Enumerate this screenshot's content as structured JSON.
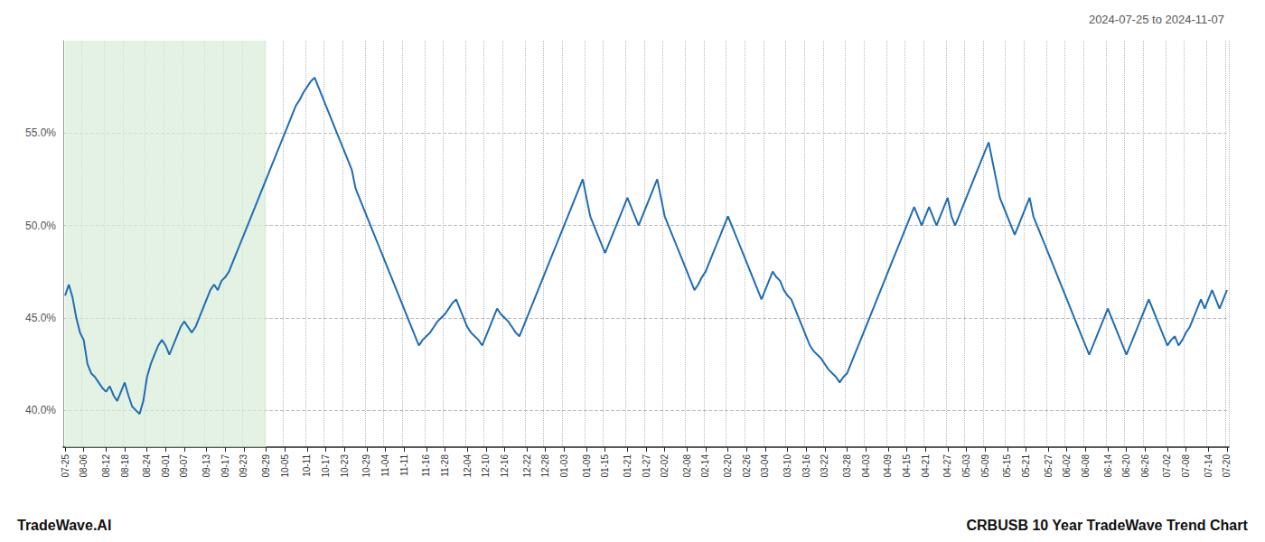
{
  "chart_data": {
    "type": "line",
    "title": "2024-07-25 to 2024-11-07",
    "annotations": [
      "TradeWave.AI",
      "CRBUSB 10 Year TradeWave Trend Chart"
    ],
    "color": "#1f6db5",
    "grid": true,
    "ylim": [
      38.0,
      60.0
    ],
    "yticks": [
      {
        "value": 40.0,
        "label": "40.0%"
      },
      {
        "value": 45.0,
        "label": "45.0%"
      },
      {
        "value": 50.0,
        "label": "50.0%"
      },
      {
        "value": 55.0,
        "label": "55.0%"
      }
    ],
    "shade": {
      "start": 0,
      "end": 54,
      "color": "#d8edd8"
    },
    "categories": [
      "07-25",
      null,
      null,
      null,
      null,
      "08-06",
      null,
      null,
      null,
      null,
      null,
      "08-12",
      null,
      null,
      null,
      null,
      "08-18",
      null,
      null,
      null,
      null,
      null,
      "08-24",
      null,
      null,
      null,
      null,
      "09-01",
      null,
      null,
      null,
      null,
      "09-07",
      null,
      null,
      null,
      null,
      null,
      "09-13",
      null,
      null,
      null,
      null,
      "09-17",
      null,
      null,
      null,
      null,
      "09-23",
      null,
      null,
      null,
      null,
      null,
      "09-29",
      null,
      null,
      null,
      null,
      "10-05",
      null,
      null,
      null,
      null,
      null,
      "10-11",
      null,
      null,
      null,
      null,
      "10-17",
      null,
      null,
      null,
      null,
      "10-23",
      null,
      null,
      null,
      null,
      null,
      "10-29",
      null,
      null,
      null,
      null,
      "11-04",
      null,
      null,
      null,
      null,
      "11-11",
      null,
      null,
      null,
      null,
      null,
      "11-16",
      null,
      null,
      null,
      null,
      "11-28",
      null,
      null,
      null,
      null,
      null,
      "12-04",
      null,
      null,
      null,
      null,
      "12-10",
      null,
      null,
      null,
      null,
      "12-16",
      null,
      null,
      null,
      null,
      null,
      "12-22",
      null,
      null,
      null,
      null,
      "12-28",
      null,
      null,
      null,
      null,
      "01-03",
      null,
      null,
      null,
      null,
      null,
      "01-09",
      null,
      null,
      null,
      null,
      "01-15",
      null,
      null,
      null,
      null,
      null,
      "01-21",
      null,
      null,
      null,
      null,
      "01-27",
      null,
      null,
      null,
      null,
      "02-02",
      null,
      null,
      null,
      null,
      null,
      "02-08",
      null,
      null,
      null,
      null,
      "02-14",
      null,
      null,
      null,
      null,
      null,
      "02-20",
      null,
      null,
      null,
      null,
      "02-26",
      null,
      null,
      null,
      null,
      "03-04",
      null,
      null,
      null,
      null,
      null,
      "03-10",
      null,
      null,
      null,
      null,
      "03-16",
      null,
      null,
      null,
      null,
      "03-22",
      null,
      null,
      null,
      null,
      null,
      "03-28",
      null,
      null,
      null,
      null,
      "04-03",
      null,
      null,
      null,
      null,
      null,
      "04-09",
      null,
      null,
      null,
      null,
      "04-15",
      null,
      null,
      null,
      null,
      "04-21",
      null,
      null,
      null,
      null,
      null,
      "04-27",
      null,
      null,
      null,
      null,
      "05-03",
      null,
      null,
      null,
      null,
      "05-09",
      null,
      null,
      null,
      null,
      null,
      "05-15",
      null,
      null,
      null,
      null,
      "05-21",
      null,
      null,
      null,
      null,
      null,
      "05-27",
      null,
      null,
      null,
      null,
      "06-02",
      null,
      null,
      null,
      null,
      "06-08",
      null,
      null,
      null,
      null,
      null,
      "06-14",
      null,
      null,
      null,
      null,
      "06-20",
      null,
      null,
      null,
      null,
      "06-26",
      null,
      null,
      null,
      null,
      null,
      "07-02",
      null,
      null,
      null,
      null,
      "07-08",
      null,
      null,
      null,
      null,
      null,
      "07-14",
      null,
      null,
      null,
      null,
      "07-20"
    ],
    "values": [
      46.2,
      46.8,
      46.1,
      45.0,
      44.2,
      43.8,
      42.5,
      42.0,
      41.8,
      41.5,
      41.2,
      41.0,
      41.3,
      40.8,
      40.5,
      41.0,
      41.5,
      40.8,
      40.2,
      40.0,
      39.8,
      40.5,
      41.8,
      42.5,
      43.0,
      43.5,
      43.8,
      43.5,
      43.0,
      43.5,
      44.0,
      44.5,
      44.8,
      44.5,
      44.2,
      44.5,
      45.0,
      45.5,
      46.0,
      46.5,
      46.8,
      46.5,
      47.0,
      47.2,
      47.5,
      48.0,
      48.5,
      49.0,
      49.5,
      50.0,
      50.5,
      51.0,
      51.5,
      52.0,
      52.5,
      53.0,
      53.5,
      54.0,
      54.5,
      55.0,
      55.5,
      56.0,
      56.5,
      56.8,
      57.2,
      57.5,
      57.8,
      58.0,
      57.5,
      57.0,
      56.5,
      56.0,
      55.5,
      55.0,
      54.5,
      54.0,
      53.5,
      53.0,
      52.0,
      51.5,
      51.0,
      50.5,
      50.0,
      49.5,
      49.0,
      48.5,
      48.0,
      47.5,
      47.0,
      46.5,
      46.0,
      45.5,
      45.0,
      44.5,
      44.0,
      43.5,
      43.8,
      44.0,
      44.2,
      44.5,
      44.8,
      45.0,
      45.2,
      45.5,
      45.8,
      46.0,
      45.5,
      45.0,
      44.5,
      44.2,
      44.0,
      43.8,
      43.5,
      44.0,
      44.5,
      45.0,
      45.5,
      45.2,
      45.0,
      44.8,
      44.5,
      44.2,
      44.0,
      44.5,
      45.0,
      45.5,
      46.0,
      46.5,
      47.0,
      47.5,
      48.0,
      48.5,
      49.0,
      49.5,
      50.0,
      50.5,
      51.0,
      51.5,
      52.0,
      52.5,
      51.5,
      50.5,
      50.0,
      49.5,
      49.0,
      48.5,
      49.0,
      49.5,
      50.0,
      50.5,
      51.0,
      51.5,
      51.0,
      50.5,
      50.0,
      50.5,
      51.0,
      51.5,
      52.0,
      52.5,
      51.5,
      50.5,
      50.0,
      49.5,
      49.0,
      48.5,
      48.0,
      47.5,
      47.0,
      46.5,
      46.8,
      47.2,
      47.5,
      48.0,
      48.5,
      49.0,
      49.5,
      50.0,
      50.5,
      50.0,
      49.5,
      49.0,
      48.5,
      48.0,
      47.5,
      47.0,
      46.5,
      46.0,
      46.5,
      47.0,
      47.5,
      47.2,
      47.0,
      46.5,
      46.2,
      46.0,
      45.5,
      45.0,
      44.5,
      44.0,
      43.5,
      43.2,
      43.0,
      42.8,
      42.5,
      42.2,
      42.0,
      41.8,
      41.5,
      41.8,
      42.0,
      42.5,
      43.0,
      43.5,
      44.0,
      44.5,
      45.0,
      45.5,
      46.0,
      46.5,
      47.0,
      47.5,
      48.0,
      48.5,
      49.0,
      49.5,
      50.0,
      50.5,
      51.0,
      50.5,
      50.0,
      50.5,
      51.0,
      50.5,
      50.0,
      50.5,
      51.0,
      51.5,
      50.5,
      50.0,
      50.5,
      51.0,
      51.5,
      52.0,
      52.5,
      53.0,
      53.5,
      54.0,
      54.5,
      53.5,
      52.5,
      51.5,
      51.0,
      50.5,
      50.0,
      49.5,
      50.0,
      50.5,
      51.0,
      51.5,
      50.5,
      50.0,
      49.5,
      49.0,
      48.5,
      48.0,
      47.5,
      47.0,
      46.5,
      46.0,
      45.5,
      45.0,
      44.5,
      44.0,
      43.5,
      43.0,
      43.5,
      44.0,
      44.5,
      45.0,
      45.5,
      45.0,
      44.5,
      44.0,
      43.5,
      43.0,
      43.5,
      44.0,
      44.5,
      45.0,
      45.5,
      46.0,
      45.5,
      45.0,
      44.5,
      44.0,
      43.5,
      43.8,
      44.0,
      43.5,
      43.8,
      44.2,
      44.5,
      45.0,
      45.5,
      46.0,
      45.5,
      46.0,
      46.5,
      46.0,
      45.5,
      46.0,
      46.5
    ]
  }
}
